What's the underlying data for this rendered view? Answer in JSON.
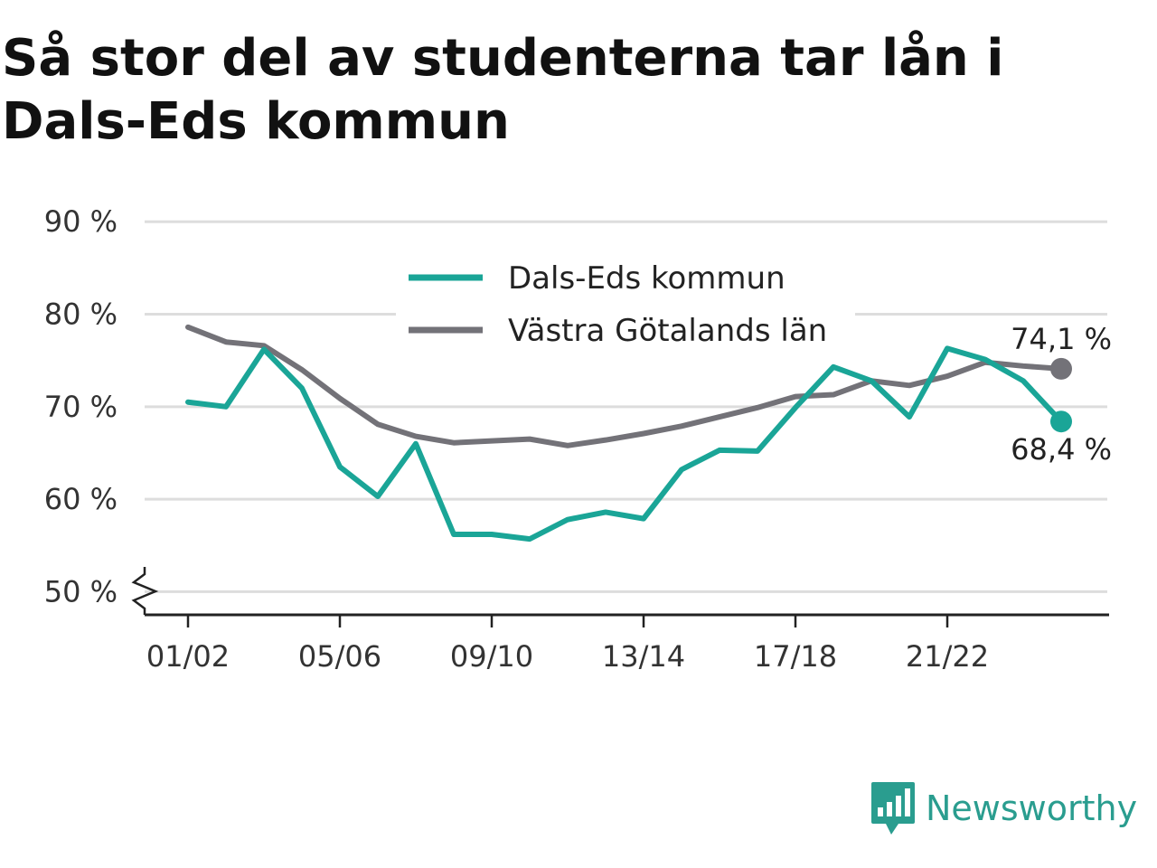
{
  "chart_data": {
    "type": "line",
    "title": "Så stor del av studenterna tar lån i Dals-Eds kommun",
    "x": [
      "01/02",
      "02/03",
      "03/04",
      "04/05",
      "05/06",
      "06/07",
      "07/08",
      "08/09",
      "09/10",
      "10/11",
      "11/12",
      "12/13",
      "13/14",
      "14/15",
      "15/16",
      "16/17",
      "17/18",
      "18/19",
      "19/20",
      "20/21",
      "21/22",
      "22/23",
      "23/24",
      "24/25"
    ],
    "x_tick_labels": [
      "01/02",
      "05/06",
      "09/10",
      "13/14",
      "17/18",
      "21/22"
    ],
    "y_tick_labels": [
      "50 %",
      "60 %",
      "70 %",
      "80 %",
      "90 %"
    ],
    "y_ticks": [
      50,
      60,
      70,
      80,
      90
    ],
    "ylim": [
      47.5,
      91
    ],
    "grid": true,
    "legend_position": "top-center",
    "series": [
      {
        "name": "Dals-Eds kommun",
        "color": "#1aa597",
        "values": [
          70.5,
          70.0,
          76.2,
          72.0,
          63.5,
          60.3,
          66.0,
          56.2,
          56.2,
          55.7,
          57.8,
          58.6,
          57.9,
          63.2,
          65.3,
          65.2,
          69.9,
          74.3,
          72.8,
          68.9,
          76.3,
          75.1,
          72.8,
          68.4
        ],
        "end_label": "68,4 %"
      },
      {
        "name": "Västra Götalands län",
        "color": "#737278",
        "values": [
          78.6,
          77.0,
          76.6,
          74.0,
          70.9,
          68.1,
          66.8,
          66.1,
          66.3,
          66.5,
          65.8,
          66.4,
          67.1,
          67.9,
          68.9,
          69.9,
          71.1,
          71.3,
          72.8,
          72.3,
          73.3,
          74.8,
          74.4,
          74.1
        ],
        "end_label": "74,1 %"
      }
    ]
  },
  "branding": {
    "name": "Newsworthy",
    "logo_icon": "bar-chart-speech-bubble-icon",
    "color": "#2a9d8f"
  }
}
